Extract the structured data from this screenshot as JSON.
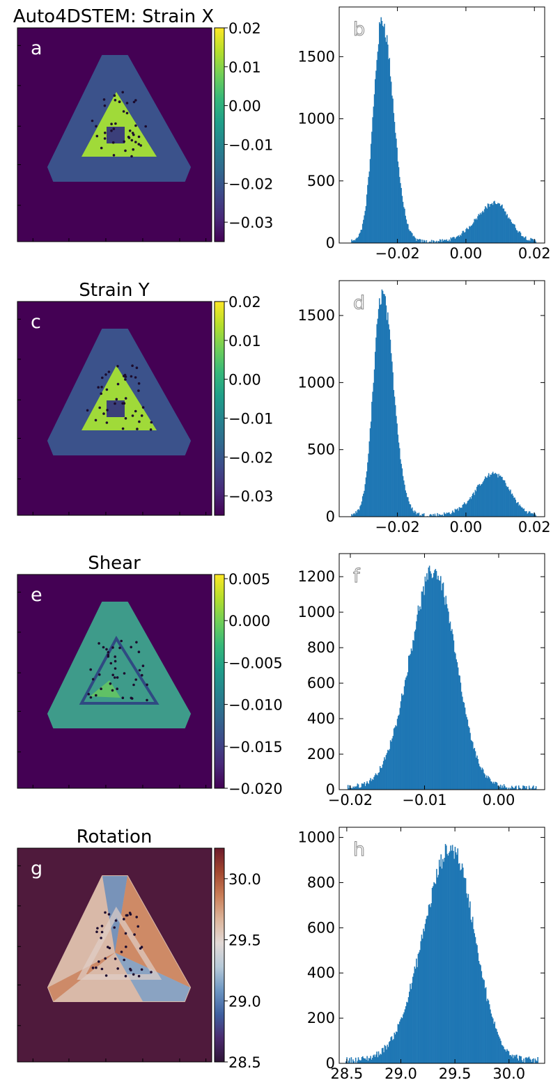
{
  "figure": {
    "title": "Auto4DSTEM: Strain X",
    "hist_color": "#1f77b4",
    "panels": [
      {
        "map": {
          "letter": "a",
          "title": "Auto4DSTEM: Strain X",
          "colormap": "viridis",
          "background_color": "#440154",
          "shell_color": "#3b528b",
          "core_color": "#a0da39",
          "clim": [
            -0.035,
            0.02
          ],
          "colorbar_ticks": [
            0.02,
            0.01,
            0.0,
            -0.01,
            -0.02,
            -0.03
          ],
          "colorbar_tick_labels": [
            "0.02",
            "0.01",
            "0.00",
            "−0.01",
            "−0.02",
            "−0.03"
          ]
        },
        "hist": {
          "letter": "b",
          "xlim": [
            -0.037,
            0.023
          ],
          "ylim": [
            0,
            1900
          ],
          "xticks": [
            -0.02,
            0.0,
            0.02
          ],
          "xtick_labels": [
            "−0.02",
            "0.00",
            "0.02"
          ],
          "yticks": [
            0,
            500,
            1000,
            1500
          ],
          "ytick_labels": [
            "0",
            "500",
            "1000",
            "1500"
          ],
          "range": [
            -0.0335,
            0.0205
          ],
          "peaks": [
            {
              "center": -0.0245,
              "height": 1780,
              "sigma_left": 0.0025,
              "sigma_right": 0.0033
            },
            {
              "center": 0.0085,
              "height": 310,
              "sigma_left": 0.0055,
              "sigma_right": 0.0042
            }
          ]
        }
      },
      {
        "map": {
          "letter": "c",
          "title": "Strain Y",
          "colormap": "viridis",
          "background_color": "#440154",
          "shell_color": "#3b528b",
          "core_color": "#a0da39",
          "clim": [
            -0.035,
            0.02
          ],
          "colorbar_ticks": [
            0.02,
            0.01,
            0.0,
            -0.01,
            -0.02,
            -0.03
          ],
          "colorbar_tick_labels": [
            "0.02",
            "0.01",
            "0.00",
            "−0.01",
            "−0.02",
            "−0.03"
          ]
        },
        "hist": {
          "letter": "d",
          "xlim": [
            -0.037,
            0.023
          ],
          "ylim": [
            0,
            1760
          ],
          "xticks": [
            -0.02,
            0.0,
            0.02
          ],
          "xtick_labels": [
            "−0.02",
            "0.00",
            "0.02"
          ],
          "yticks": [
            0,
            500,
            1000,
            1500
          ],
          "ytick_labels": [
            "0",
            "500",
            "1000",
            "1500"
          ],
          "range": [
            -0.0335,
            0.0205
          ],
          "peaks": [
            {
              "center": -0.0245,
              "height": 1650,
              "sigma_left": 0.0025,
              "sigma_right": 0.0033
            },
            {
              "center": 0.0085,
              "height": 310,
              "sigma_left": 0.0055,
              "sigma_right": 0.0042
            }
          ]
        }
      },
      {
        "map": {
          "letter": "e",
          "title": "Shear",
          "colormap": "viridis",
          "background_color": "#440154",
          "shell_color": "#3e9b8a",
          "core_color": "#3a5a8c",
          "clim": [
            -0.02,
            0.0055
          ],
          "colorbar_ticks": [
            0.005,
            0.0,
            -0.005,
            -0.01,
            -0.015,
            -0.02
          ],
          "colorbar_tick_labels": [
            "0.005",
            "0.000",
            "−0.005",
            "−0.010",
            "−0.015",
            "−0.020"
          ]
        },
        "hist": {
          "letter": "f",
          "xlim": [
            -0.0215,
            0.0062
          ],
          "ylim": [
            0,
            1330
          ],
          "xticks": [
            -0.02,
            -0.01,
            0.0
          ],
          "xtick_labels": [
            "−0.02",
            "−0.01",
            "0.00"
          ],
          "yticks": [
            0,
            200,
            400,
            600,
            800,
            1000,
            1200
          ],
          "ytick_labels": [
            "0",
            "200",
            "400",
            "600",
            "800",
            "1000",
            "1200"
          ],
          "range": [
            -0.0205,
            0.0052
          ],
          "peaks": [
            {
              "center": -0.0087,
              "height": 1220,
              "sigma_left": 0.0033,
              "sigma_right": 0.0029
            }
          ]
        }
      },
      {
        "map": {
          "letter": "g",
          "title": "Rotation",
          "colormap": "twilight_shifted",
          "background_color": "#4f1a3c",
          "shell_color": "#d9b9a8",
          "core_color": "#b3643f",
          "clim": [
            28.5,
            30.25
          ],
          "colorbar_ticks": [
            30.0,
            29.5,
            29.0,
            28.5
          ],
          "colorbar_tick_labels": [
            "30.0",
            "29.5",
            "29.0",
            "28.5"
          ]
        },
        "hist": {
          "letter": "h",
          "xlim": [
            28.43,
            30.33
          ],
          "ylim": [
            0,
            1045
          ],
          "xticks": [
            28.5,
            29.0,
            29.5,
            30.0
          ],
          "xtick_labels": [
            "28.5",
            "29.0",
            "29.5",
            "30.0"
          ],
          "yticks": [
            0,
            200,
            400,
            600,
            800,
            1000
          ],
          "ytick_labels": [
            "0",
            "200",
            "400",
            "600",
            "800",
            "1000"
          ],
          "range": [
            28.48,
            30.27
          ],
          "peaks": [
            {
              "center": 29.47,
              "height": 940,
              "sigma_left": 0.26,
              "sigma_right": 0.21
            }
          ]
        }
      }
    ]
  },
  "chart_data": [
    {
      "type": "heatmap",
      "title": "Auto4DSTEM: Strain X",
      "label": "a",
      "colorbar_range": [
        -0.035,
        0.02
      ]
    },
    {
      "type": "bar",
      "label": "b",
      "description_values": {
        "bin_range": [
          -0.0335,
          0.0205
        ],
        "peak_1": {
          "x": -0.0245,
          "count": 1780
        },
        "peak_2": {
          "x": 0.0085,
          "count": 310
        }
      },
      "xlim": [
        -0.037,
        0.023
      ],
      "ylim": [
        0,
        1900
      ]
    },
    {
      "type": "heatmap",
      "title": "Strain Y",
      "label": "c",
      "colorbar_range": [
        -0.035,
        0.02
      ]
    },
    {
      "type": "bar",
      "label": "d",
      "description_values": {
        "bin_range": [
          -0.0335,
          0.0205
        ],
        "peak_1": {
          "x": -0.0245,
          "count": 1650
        },
        "peak_2": {
          "x": 0.0085,
          "count": 310
        }
      },
      "xlim": [
        -0.037,
        0.023
      ],
      "ylim": [
        0,
        1760
      ]
    },
    {
      "type": "heatmap",
      "title": "Shear",
      "label": "e",
      "colorbar_range": [
        -0.02,
        0.0055
      ]
    },
    {
      "type": "bar",
      "label": "f",
      "description_values": {
        "bin_range": [
          -0.0205,
          0.0052
        ],
        "peak_1": {
          "x": -0.0087,
          "count": 1220
        }
      },
      "xlim": [
        -0.0215,
        0.0062
      ],
      "ylim": [
        0,
        1330
      ]
    },
    {
      "type": "heatmap",
      "title": "Rotation",
      "label": "g",
      "colorbar_range": [
        28.5,
        30.25
      ]
    },
    {
      "type": "bar",
      "label": "h",
      "description_values": {
        "bin_range": [
          28.48,
          30.27
        ],
        "peak_1": {
          "x": 29.47,
          "count": 940
        }
      },
      "xlim": [
        28.43,
        30.33
      ],
      "ylim": [
        0,
        1045
      ]
    }
  ]
}
